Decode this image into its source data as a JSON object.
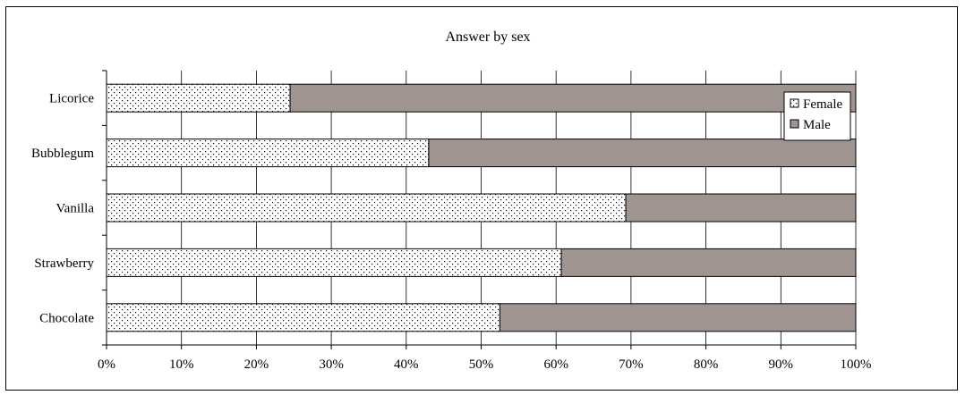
{
  "chart_data": {
    "type": "bar",
    "orientation": "horizontal",
    "stacked": true,
    "title": "Answer by sex",
    "categories": [
      "Licorice",
      "Bubblegum",
      "Vanilla",
      "Strawberry",
      "Chocolate"
    ],
    "series": [
      {
        "name": "Female",
        "values": [
          24.5,
          43,
          69.3,
          60.7,
          52.5
        ],
        "color": "#ffffff",
        "pattern": "dotted"
      },
      {
        "name": "Male",
        "values": [
          75.5,
          57,
          30.7,
          39.3,
          47.5
        ],
        "color": "#a09490"
      }
    ],
    "xlim": [
      0,
      100
    ],
    "x_ticks": [
      "0%",
      "10%",
      "20%",
      "30%",
      "40%",
      "50%",
      "60%",
      "70%",
      "80%",
      "90%",
      "100%"
    ],
    "xlabel": "",
    "ylabel": "",
    "grid": true,
    "legend_position": "top-right"
  }
}
